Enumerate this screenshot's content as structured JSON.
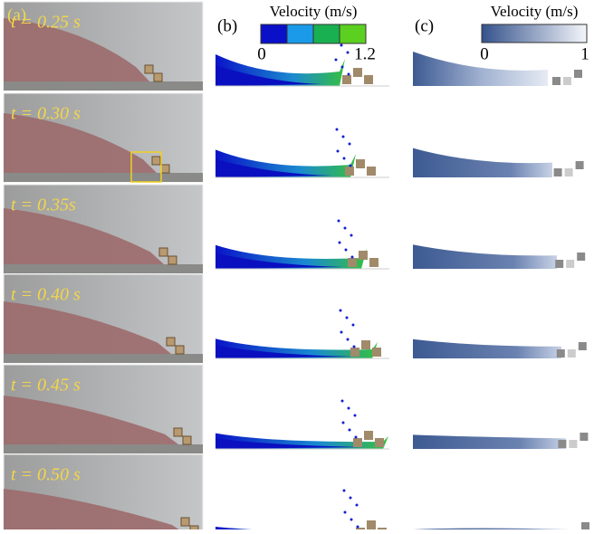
{
  "panels": {
    "a": {
      "label": "(a)",
      "times": [
        "t = 0.25 s",
        "t = 0.30 s",
        "t = 0.35s",
        "t = 0.40 s",
        "t = 0.45 s",
        "t = 0.50 s"
      ]
    },
    "b": {
      "label": "(b)",
      "colorbar": {
        "title": "Velocity (m/s)",
        "min": "0",
        "max": "1.2"
      }
    },
    "c": {
      "label": "(c)",
      "colorbar": {
        "title": "Velocity (m/s)",
        "min": "0",
        "max": "1"
      }
    }
  }
}
